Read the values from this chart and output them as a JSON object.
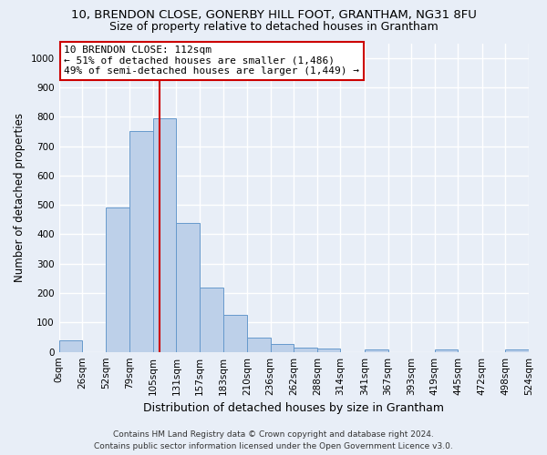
{
  "title_line1": "10, BRENDON CLOSE, GONERBY HILL FOOT, GRANTHAM, NG31 8FU",
  "title_line2": "Size of property relative to detached houses in Grantham",
  "xlabel": "Distribution of detached houses by size in Grantham",
  "ylabel": "Number of detached properties",
  "bin_edges": [
    0,
    26,
    52,
    79,
    105,
    131,
    157,
    183,
    210,
    236,
    262,
    288,
    314,
    341,
    367,
    393,
    419,
    445,
    472,
    498,
    524
  ],
  "bar_heights": [
    40,
    0,
    490,
    750,
    795,
    438,
    220,
    127,
    50,
    27,
    15,
    10,
    0,
    8,
    0,
    0,
    8,
    0,
    0,
    8
  ],
  "bar_color": "#bdd0e9",
  "bar_edge_color": "#6699cc",
  "property_size": 112,
  "vline_color": "#cc0000",
  "annotation_line1": "10 BRENDON CLOSE: 112sqm",
  "annotation_line2": "← 51% of detached houses are smaller (1,486)",
  "annotation_line3": "49% of semi-detached houses are larger (1,449) →",
  "annotation_box_color": "#ffffff",
  "annotation_box_edge_color": "#cc0000",
  "ylim": [
    0,
    1050
  ],
  "yticks": [
    0,
    100,
    200,
    300,
    400,
    500,
    600,
    700,
    800,
    900,
    1000
  ],
  "footer_line1": "Contains HM Land Registry data © Crown copyright and database right 2024.",
  "footer_line2": "Contains public sector information licensed under the Open Government Licence v3.0.",
  "background_color": "#e8eef7",
  "grid_color": "#ffffff",
  "title1_fontsize": 9.5,
  "title2_fontsize": 9,
  "axis_label_fontsize": 8.5,
  "tick_fontsize": 7.5,
  "annotation_fontsize": 8,
  "footer_fontsize": 6.5
}
